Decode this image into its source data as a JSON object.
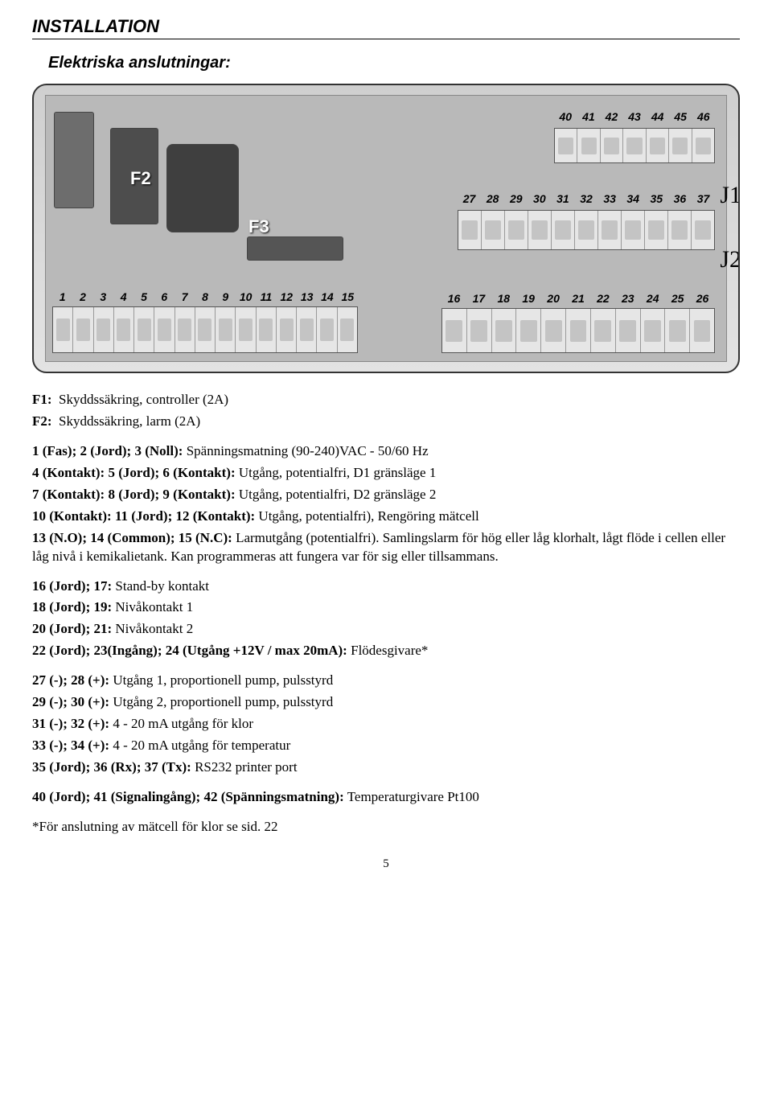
{
  "headings": {
    "main": "INSTALLATION",
    "sub": "Elektriska anslutningar:"
  },
  "diagram": {
    "labels": {
      "F2": "F2",
      "F3": "F3",
      "J1": "J1",
      "J2": "J2"
    },
    "rows": {
      "left_bottom": [
        "1",
        "2",
        "3",
        "4",
        "5",
        "6",
        "7",
        "8",
        "9",
        "10",
        "11",
        "12",
        "13",
        "14",
        "15"
      ],
      "top_right": [
        "40",
        "41",
        "42",
        "43",
        "44",
        "45",
        "46"
      ],
      "mid_right": [
        "27",
        "28",
        "29",
        "30",
        "31",
        "32",
        "33",
        "34",
        "35",
        "36",
        "37"
      ],
      "bottom_right": [
        "16",
        "17",
        "18",
        "19",
        "20",
        "21",
        "22",
        "23",
        "24",
        "25",
        "26"
      ]
    }
  },
  "lines": {
    "f1": {
      "label": "F1:",
      "desc": "Skyddssäkring, controller (2A)"
    },
    "f2": {
      "label": "F2:",
      "desc": "Skyddssäkring, larm (2A)"
    },
    "l1": {
      "bold": "1 (Fas); 2 (Jord); 3 (Noll):",
      "rest": " Spänningsmatning (90-240)VAC - 50/60 Hz"
    },
    "l4": {
      "bold": "4 (Kontakt): 5 (Jord); 6 (Kontakt):",
      "rest": " Utgång, potentialfri, D1 gränsläge 1"
    },
    "l7": {
      "bold": "7 (Kontakt): 8 (Jord); 9 (Kontakt):",
      "rest": " Utgång, potentialfri, D2 gränsläge 2"
    },
    "l10": {
      "bold": "10 (Kontakt): 11 (Jord); 12 (Kontakt):",
      "rest": " Utgång, potentialfri), Rengöring mätcell"
    },
    "l13": {
      "bold": "13 (N.O); 14 (Common); 15 (N.C):",
      "rest": " Larmutgång (potentialfri). Samlingslarm för hög eller låg klorhalt, lågt flöde i cellen eller låg nivå i kemikalietank. Kan programmeras att fungera var för sig eller tillsammans."
    },
    "l16": {
      "bold": "16 (Jord); 17:",
      "rest": " Stand-by kontakt"
    },
    "l18": {
      "bold": "18 (Jord); 19:",
      "rest": " Nivåkontakt 1"
    },
    "l20": {
      "bold": "20 (Jord); 21:",
      "rest": " Nivåkontakt 2"
    },
    "l22": {
      "bold": "22 (Jord); 23(Ingång); 24 (Utgång +12V / max 20mA):",
      "rest": "  Flödesgivare*"
    },
    "l27": {
      "bold": "27 (-); 28 (+):",
      "rest": " Utgång 1, proportionell pump, pulsstyrd"
    },
    "l29": {
      "bold": "29 (-); 30 (+):",
      "rest": " Utgång 2, proportionell pump, pulsstyrd"
    },
    "l31": {
      "bold": "31 (-); 32 (+):",
      "rest": "  4 - 20 mA utgång för klor"
    },
    "l33": {
      "bold": "33 (-); 34 (+):",
      "rest": "  4 - 20 mA utgång för temperatur"
    },
    "l35": {
      "bold": "35 (Jord); 36 (Rx); 37 (Tx):",
      "rest": " RS232 printer port"
    },
    "l40": {
      "bold": "40 (Jord); 41 (Signalingång); 42 (Spänningsmatning):",
      "rest": " Temperaturgivare Pt100"
    },
    "note": "*För anslutning av mätcell för klor se sid. 22"
  },
  "page": "5"
}
